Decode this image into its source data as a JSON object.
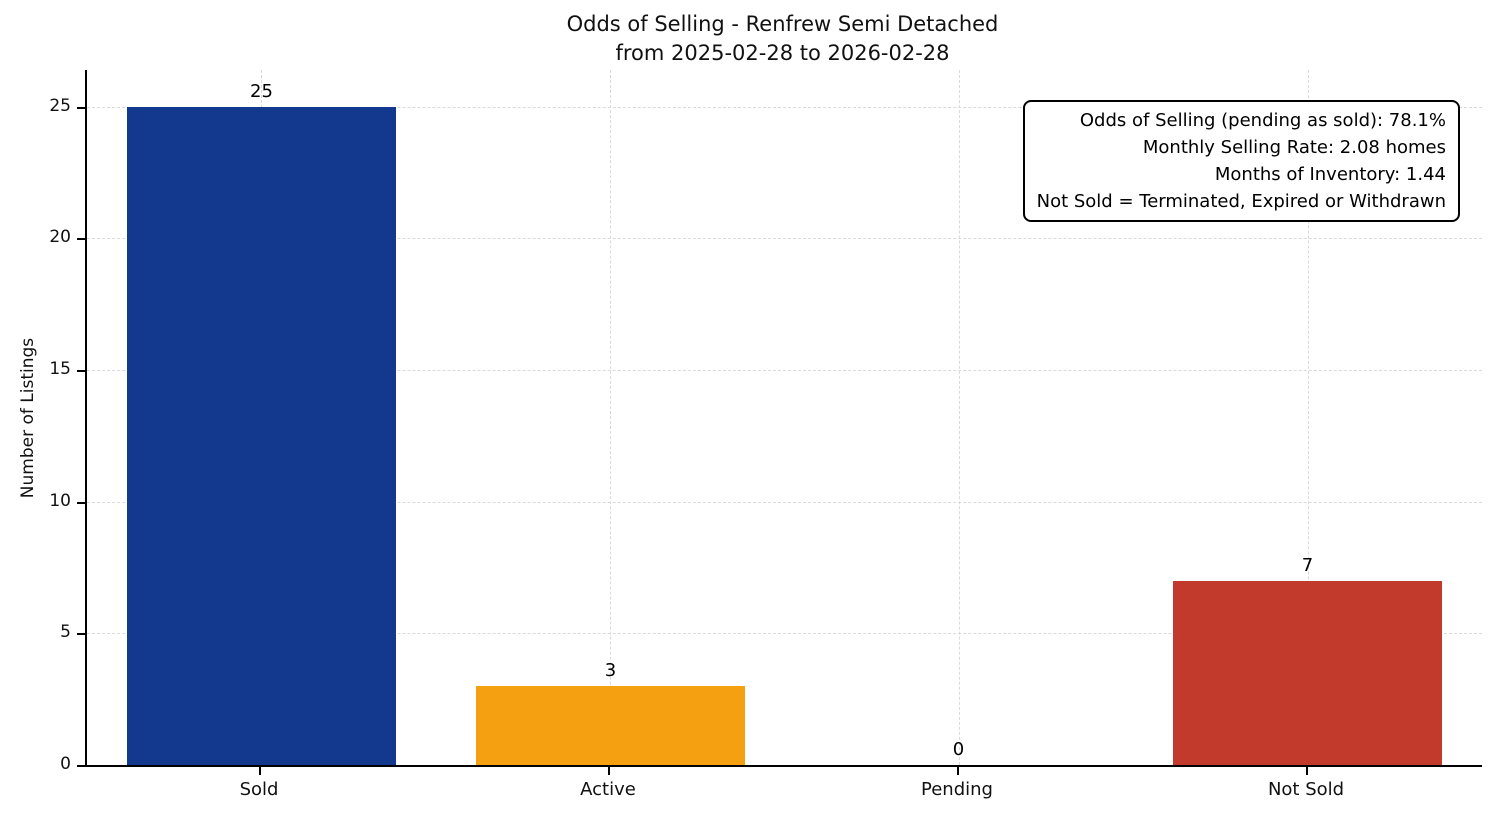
{
  "title": {
    "line1": "Odds of Selling - Renfrew Semi Detached",
    "line2": "from 2025-02-28 to 2026-02-28"
  },
  "chart_data": {
    "type": "bar",
    "title": "Odds of Selling - Renfrew Semi Detached\nfrom 2025-02-28 to 2026-02-28",
    "categories": [
      "Sold",
      "Active",
      "Pending",
      "Not Sold"
    ],
    "values": [
      25,
      3,
      0,
      7
    ],
    "bar_colors": [
      "#12398e",
      "#f4a011",
      "#2ca02c",
      "#c13a2b"
    ],
    "xlabel": "",
    "ylabel": "Number of Listings",
    "yticks": [
      0,
      5,
      10,
      15,
      20,
      25
    ],
    "ylim": [
      0,
      26.4
    ],
    "grid": "dashed-both-axes",
    "legend": "none",
    "annotation_lines": [
      "Odds of Selling (pending as sold): 78.1%",
      "Monthly Selling Rate: 2.08 homes",
      "Months of Inventory: 1.44",
      "Not Sold = Terminated, Expired or Withdrawn"
    ]
  }
}
